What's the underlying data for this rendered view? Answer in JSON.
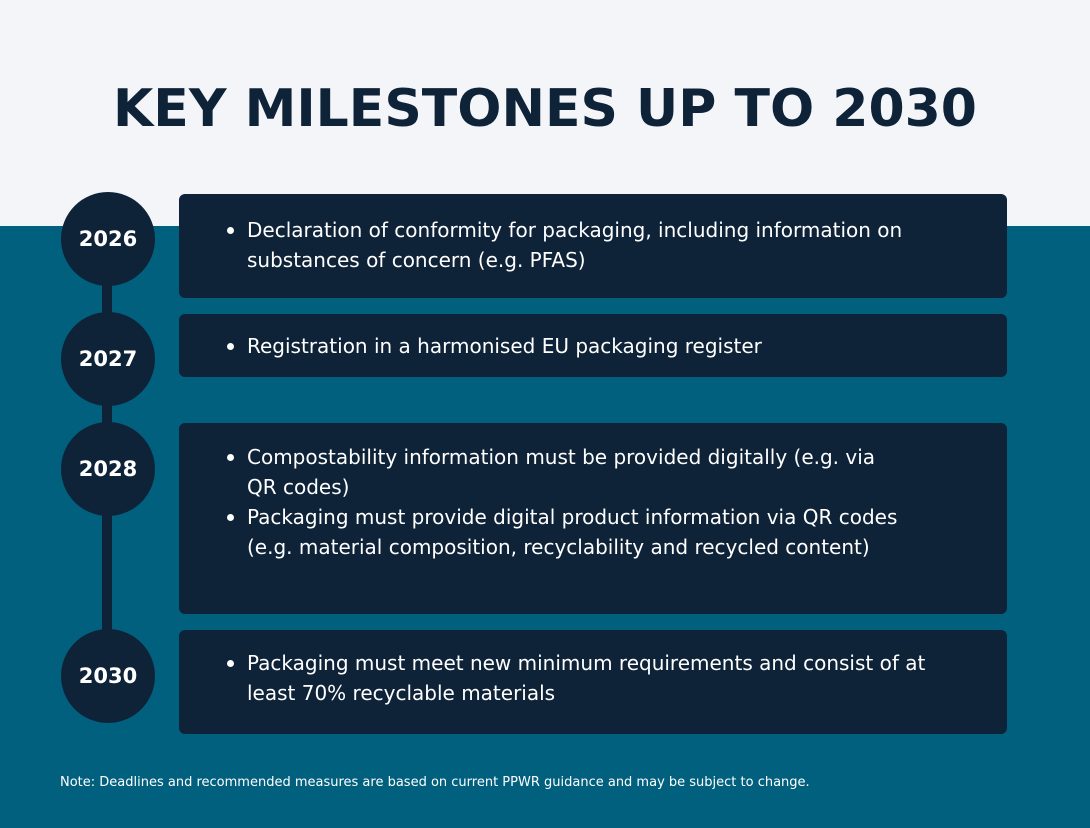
{
  "title": "KEY MILESTONES UP TO 2030",
  "milestones": [
    {
      "year": "2026",
      "items": [
        "Declaration of conformity for packaging, including information on substances of concern (e.g. PFAS)"
      ]
    },
    {
      "year": "2027",
      "items": [
        "Registration in a harmonised EU packaging register"
      ]
    },
    {
      "year": "2028",
      "items": [
        "Compostability information must be provided digitally (e.g. via QR codes)",
        "Packaging must provide digital product information via QR codes (e.g. material composition, recyclability and recycled content)"
      ]
    },
    {
      "year": "2030",
      "items": [
        "Packaging must meet new minimum requirements and consist of at least 70% recyclable materials"
      ]
    }
  ],
  "note": "Note: Deadlines and recommended measures are based on current PPWR guidance and may be subject to change.",
  "colors": {
    "navy": "#0e2238",
    "teal": "#02607f",
    "light_band": "#f4f5f8"
  }
}
